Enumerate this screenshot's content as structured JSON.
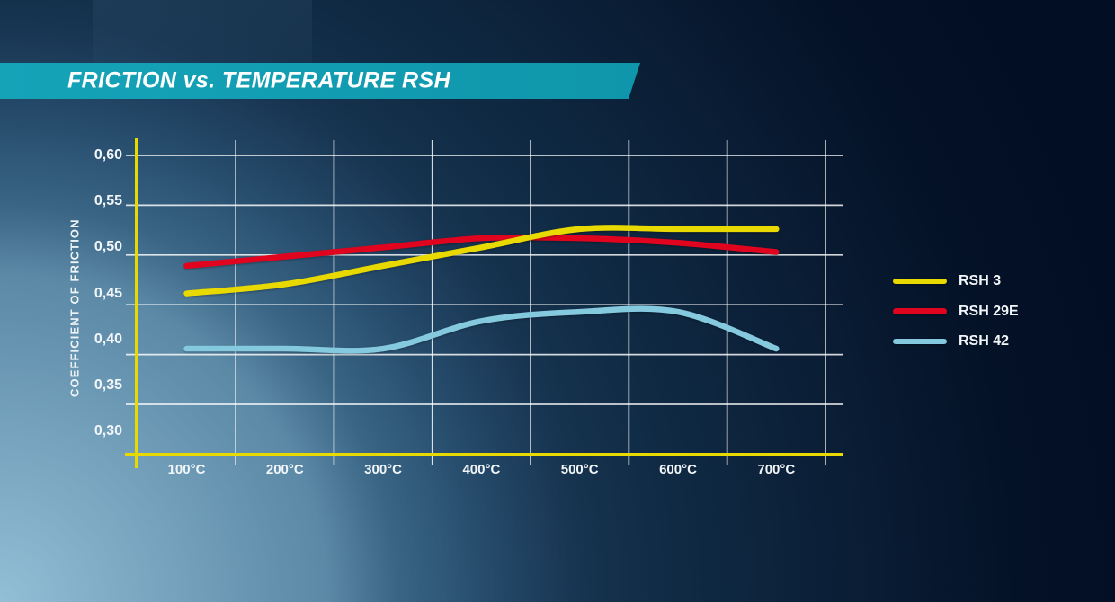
{
  "banner": {
    "title": "FRICTION vs. TEMPERATURE RSH",
    "color": "#12a0b5"
  },
  "chart_data": {
    "type": "line",
    "title": "FRICTION vs. TEMPERATURE RSH",
    "ylabel": "COEFFICIENT OF FRICTION",
    "xlabel": "",
    "x_unit": "°C",
    "categories": [
      "100°C",
      "200°C",
      "300°C",
      "400°C",
      "500°C",
      "600°C",
      "700°C"
    ],
    "x_values": [
      100,
      200,
      300,
      400,
      500,
      600,
      700
    ],
    "y_ticks": [
      "0,60",
      "0,55",
      "0,50",
      "0,45",
      "0,40",
      "0,35",
      "0,30"
    ],
    "y_tick_values": [
      0.6,
      0.55,
      0.5,
      0.45,
      0.4,
      0.35,
      0.3
    ],
    "ylim": [
      0.3,
      0.6
    ],
    "grid": true,
    "legend_position": "right",
    "axis_color": "#e8d900",
    "gridline_color": "rgba(255,255,255,0.82)",
    "series": [
      {
        "name": "RSH 3",
        "color": "#e8d900",
        "values": [
          0.45,
          0.46,
          0.48,
          0.5,
          0.52,
          0.52,
          0.52
        ]
      },
      {
        "name": "RSH 29E",
        "color": "#e1041f",
        "values": [
          0.48,
          0.49,
          0.5,
          0.51,
          0.51,
          0.505,
          0.495
        ]
      },
      {
        "name": "RSH 42",
        "color": "#84c9dd",
        "values": [
          0.39,
          0.39,
          0.39,
          0.42,
          0.43,
          0.43,
          0.39
        ]
      }
    ]
  }
}
